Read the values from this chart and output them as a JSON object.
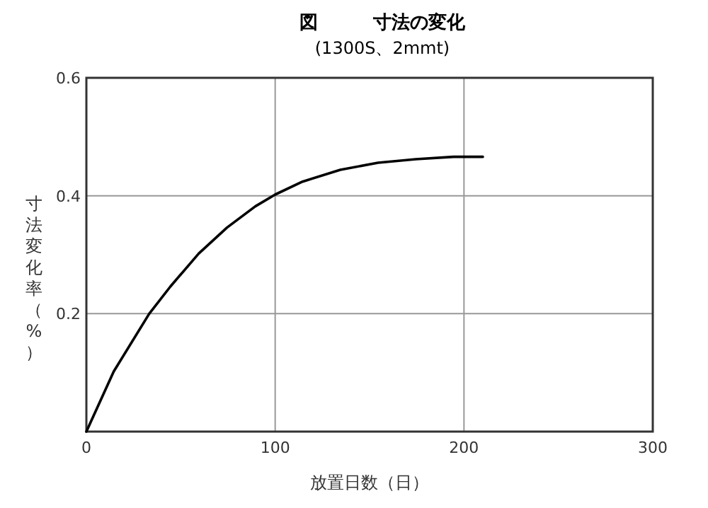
{
  "chart_data": {
    "type": "line",
    "title": "図　　　寸法の変化",
    "subtitle": "(1300S、2mmt)",
    "xlabel": "放置日数（日）",
    "ylabel": "寸法変化率（%）",
    "xlim": [
      0,
      300
    ],
    "ylim": [
      0,
      0.6
    ],
    "xticks": [
      0,
      100,
      200,
      300
    ],
    "yticks": [
      {
        "value": 0,
        "label": null
      },
      0.2,
      0.4,
      0.6
    ],
    "grid": true,
    "series": [
      {
        "color": "#000000",
        "x": [
          0,
          14.5,
          33.3,
          44.5,
          59.5,
          74.5,
          89.5,
          100,
          114.5,
          134.5,
          154.5,
          174.5,
          194.5,
          210
        ],
        "values": [
          0,
          0.102,
          0.2,
          0.246,
          0.302,
          0.346,
          0.382,
          0.402,
          0.424,
          0.444,
          0.456,
          0.462,
          0.466,
          0.466
        ]
      }
    ]
  }
}
